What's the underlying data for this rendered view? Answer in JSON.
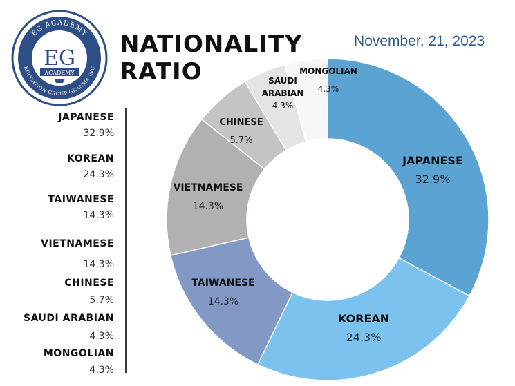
{
  "logo": {
    "top_text": "EG ACADEMY",
    "monogram": "EG",
    "ribbon": "ACADEMY",
    "bottom_text": "EDUCATION GROUP GRANMA INC"
  },
  "header": {
    "title_line1": "NATIONALITY",
    "title_line2": "RATIO",
    "date": "November, 21, 2023"
  },
  "chart_data": {
    "type": "pie",
    "style": "donut",
    "categories": [
      "JAPANESE",
      "KOREAN",
      "TAIWANESE",
      "VIETNAMESE",
      "CHINESE",
      "SAUDI ARABIAN",
      "MONGOLIAN"
    ],
    "values": [
      32.9,
      24.3,
      14.3,
      14.3,
      5.7,
      4.3,
      4.3
    ],
    "labels": [
      "32.9%",
      "24.3%",
      "14.3%",
      "14.3%",
      "5.7%",
      "4.3%",
      "4.3%"
    ],
    "colors": [
      "#5ba3d3",
      "#7bc3ee",
      "#8199c4",
      "#b3b0b1",
      "#c4c4c4",
      "#e4e4e6",
      "#f7f7f7"
    ],
    "legend_position": "left"
  },
  "colors": {
    "title": "#111111",
    "date": "#2f5c8f",
    "logo_navy": "#2e4f86"
  }
}
